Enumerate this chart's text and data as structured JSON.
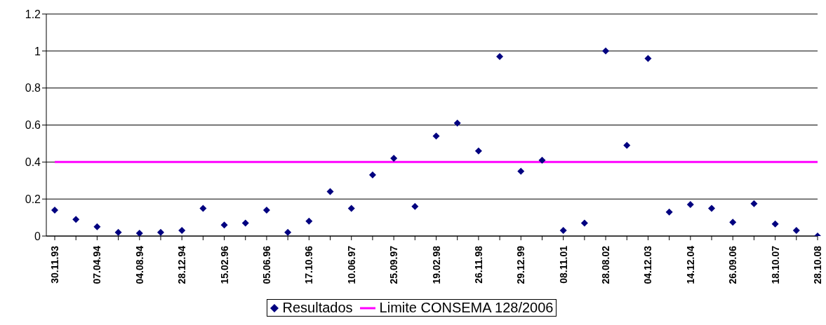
{
  "chart_data": {
    "type": "scatter",
    "categories": [
      "30.11.93",
      null,
      "07.04.94",
      null,
      "04.08.94",
      null,
      "28.12.94",
      null,
      "15.02.96",
      null,
      "05.06.96",
      null,
      "17.10.96",
      null,
      "10.06.97",
      null,
      "25.09.97",
      null,
      "19.02.98",
      null,
      "26.11.98",
      null,
      "29.12.99",
      null,
      "08.11.01",
      null,
      "28.08.02",
      null,
      "04.12.03",
      null,
      "14.12.04",
      null,
      "26.09.06",
      null,
      "18.10.07",
      null,
      "28.10.08"
    ],
    "series": [
      {
        "name": "Resultados",
        "color": "#000080",
        "marker": "diamond",
        "values": [
          0.14,
          0.09,
          0.05,
          0.02,
          0.015,
          0.02,
          0.03,
          0.15,
          0.06,
          0.07,
          0.14,
          0.02,
          0.08,
          0.24,
          0.15,
          0.33,
          0.42,
          0.16,
          0.54,
          0.61,
          0.46,
          0.97,
          0.35,
          0.41,
          0.03,
          0.07,
          1.0,
          0.49,
          0.96,
          0.13,
          0.17,
          0.15,
          0.075,
          0.175,
          0.065,
          0.03,
          0.0
        ]
      },
      {
        "name": "Limite CONSEMA 128/2006",
        "type": "line",
        "color": "#ff00ff",
        "marker": "none",
        "values": [
          0.4,
          0.4,
          0.4,
          0.4,
          0.4,
          0.4,
          0.4,
          0.4,
          0.4,
          0.4,
          0.4,
          0.4,
          0.4,
          0.4,
          0.4,
          0.4,
          0.4,
          0.4,
          0.4,
          0.4,
          0.4,
          0.4,
          0.4,
          0.4,
          0.4,
          0.4,
          0.4,
          0.4,
          0.4,
          0.4,
          0.4,
          0.4,
          0.4,
          0.4,
          0.4,
          0.4,
          0.4
        ]
      }
    ],
    "ylim": [
      0,
      1.2
    ],
    "yticks": [
      0,
      0.2,
      0.4,
      0.6,
      0.8,
      1,
      1.2
    ],
    "grid": "y",
    "legend": "bottom"
  }
}
